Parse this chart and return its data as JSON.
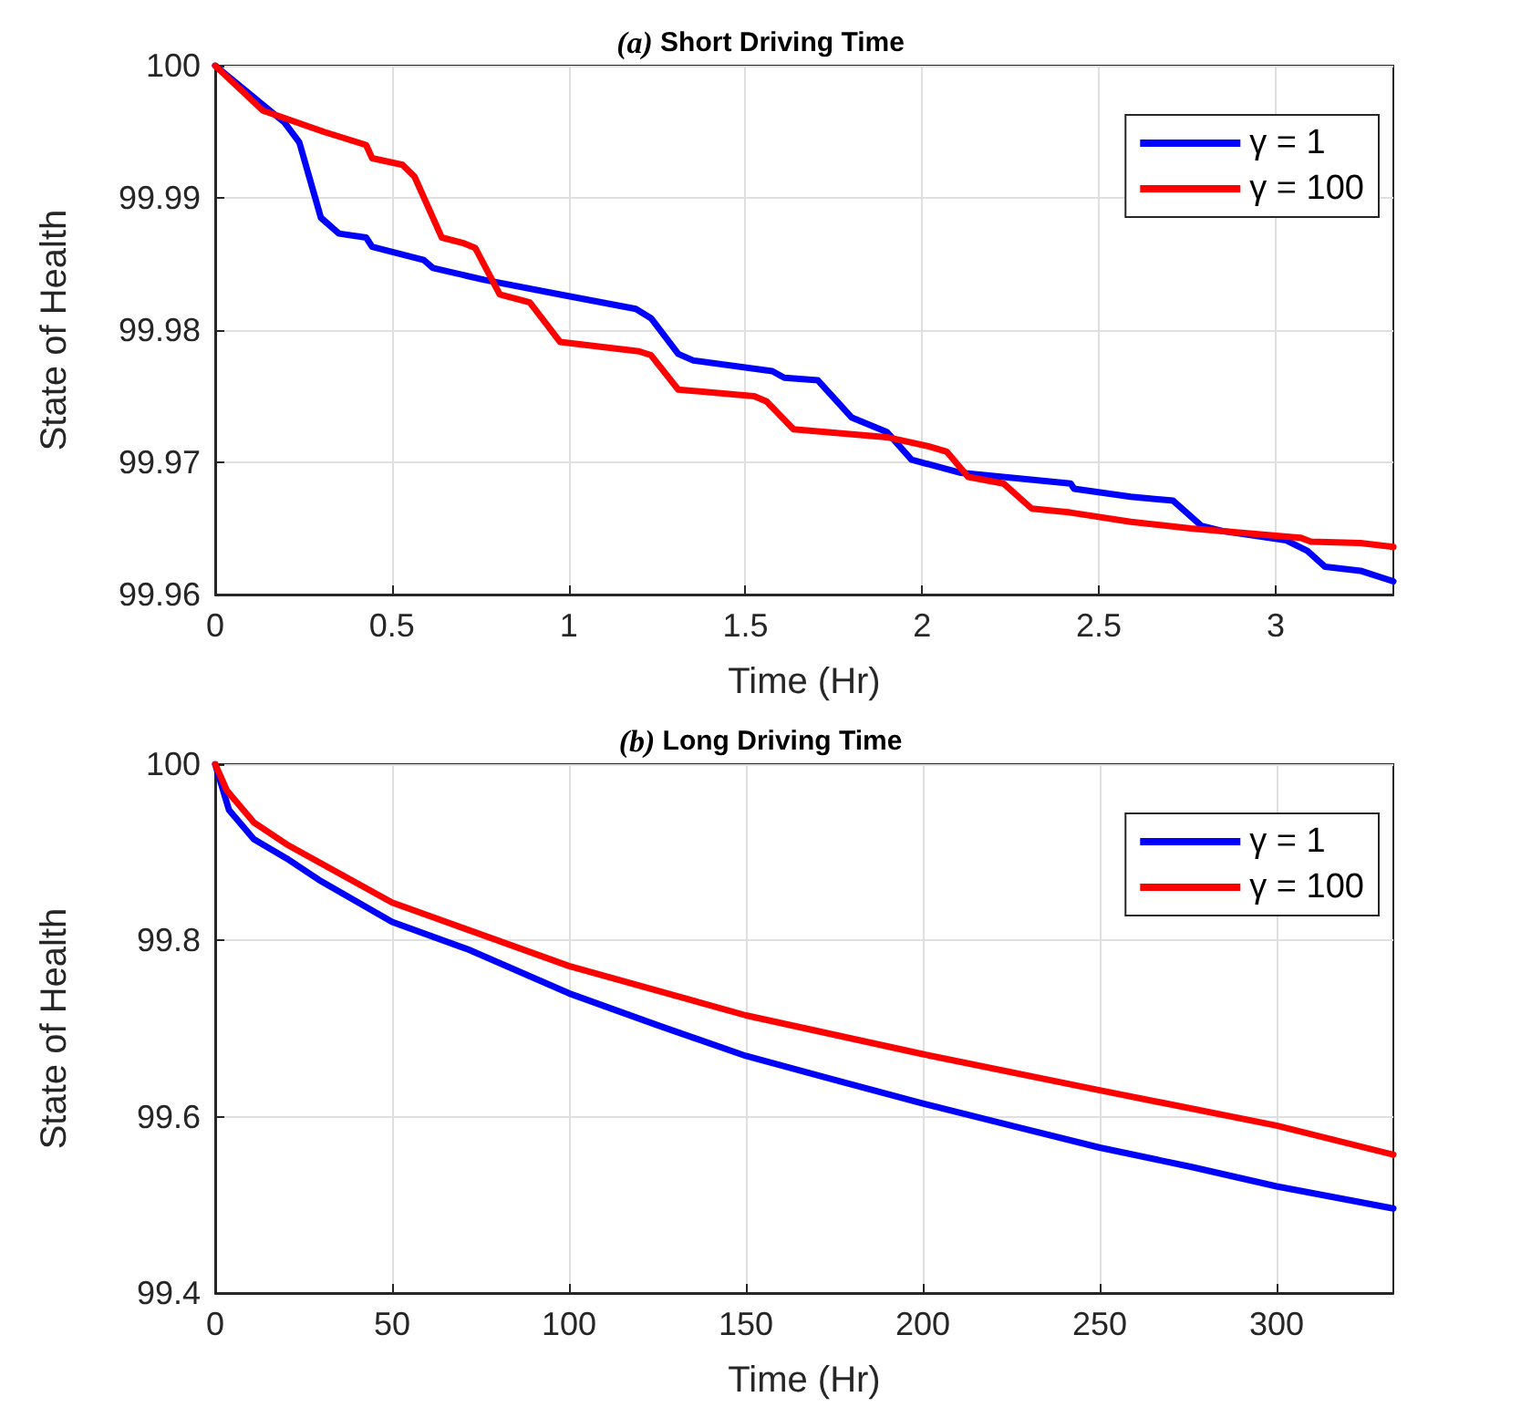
{
  "chart_data": [
    {
      "type": "line",
      "title": "(a) Short Driving Time",
      "xlabel": "Time (Hr)",
      "ylabel": "State of Health",
      "xlim": [
        0,
        3.333
      ],
      "xticks": [
        0,
        0.5,
        1,
        1.5,
        2,
        2.5,
        3
      ],
      "ylim": [
        99.96,
        100
      ],
      "yticks": [
        99.96,
        99.97,
        99.98,
        99.99,
        100
      ],
      "grid": true,
      "legend": "top right",
      "marker": "none",
      "line_style": "solid",
      "series": [
        {
          "name": "γ = 1",
          "color": "#0000ff",
          "x": [
            0,
            0.196,
            0.238,
            0.299,
            0.35,
            0.427,
            0.444,
            0.59,
            0.616,
            0.761,
            0.993,
            1.19,
            1.233,
            1.31,
            1.353,
            1.576,
            1.61,
            1.705,
            1.8,
            1.9,
            1.97,
            2.11,
            2.42,
            2.43,
            2.59,
            2.71,
            2.79,
            2.85,
            3.03,
            3.09,
            3.14,
            3.24,
            3.333
          ],
          "values": [
            100,
            99.9957,
            99.9942,
            99.9885,
            99.9873,
            99.987,
            99.9863,
            99.9853,
            99.9847,
            99.9838,
            99.9826,
            99.9816,
            99.9809,
            99.9782,
            99.9777,
            99.9769,
            99.9764,
            99.9762,
            99.9734,
            99.9723,
            99.9702,
            99.9692,
            99.9684,
            99.968,
            99.9674,
            99.9671,
            99.9652,
            99.9648,
            99.9641,
            99.9633,
            99.9621,
            99.9618,
            99.961
          ]
        },
        {
          "name": "γ = 100",
          "color": "#ff0000",
          "x": [
            0,
            0.135,
            0.307,
            0.427,
            0.444,
            0.53,
            0.564,
            0.641,
            0.7,
            0.736,
            0.805,
            0.89,
            0.976,
            1.199,
            1.233,
            1.31,
            1.525,
            1.56,
            1.636,
            1.9,
            2.02,
            2.07,
            2.13,
            2.23,
            2.31,
            2.42,
            2.59,
            2.76,
            3.07,
            3.1,
            3.24,
            3.333
          ],
          "values": [
            100,
            99.9966,
            99.995,
            99.994,
            99.993,
            99.9925,
            99.9916,
            99.987,
            99.9866,
            99.9862,
            99.9827,
            99.9821,
            99.9791,
            99.9784,
            99.9781,
            99.9755,
            99.975,
            99.9746,
            99.9725,
            99.9719,
            99.9712,
            99.9708,
            99.9689,
            99.9684,
            99.9665,
            99.9662,
            99.9655,
            99.965,
            99.9643,
            99.964,
            99.9639,
            99.9636
          ]
        }
      ]
    },
    {
      "type": "line",
      "title": "(b) Long Driving Time",
      "xlabel": "Time (Hr)",
      "ylabel": "State of Health",
      "xlim": [
        0,
        333
      ],
      "xticks": [
        0,
        50,
        100,
        150,
        200,
        250,
        300
      ],
      "ylim": [
        99.4,
        100
      ],
      "yticks": [
        99.4,
        99.6,
        99.8,
        100
      ],
      "grid": true,
      "legend": "top right",
      "marker": "none",
      "line_style": "solid",
      "series": [
        {
          "name": "γ = 1",
          "color": "#0000ff",
          "x": [
            0,
            3.9,
            10.9,
            20.2,
            30,
            50,
            71.4,
            100,
            124.9,
            150,
            174,
            200,
            225,
            250,
            276,
            300,
            333
          ],
          "values": [
            100,
            99.948,
            99.915,
            99.893,
            99.867,
            99.821,
            99.79,
            99.74,
            99.704,
            99.669,
            99.643,
            99.615,
            99.59,
            99.565,
            99.543,
            99.521,
            99.496
          ]
        },
        {
          "name": "γ = 100",
          "color": "#ff0000",
          "x": [
            0,
            3.3,
            10.9,
            20.2,
            50,
            100,
            150,
            200,
            250,
            300,
            333
          ],
          "values": [
            100,
            99.97,
            99.934,
            99.909,
            99.843,
            99.771,
            99.715,
            99.671,
            99.63,
            99.59,
            99.557
          ]
        }
      ]
    }
  ]
}
